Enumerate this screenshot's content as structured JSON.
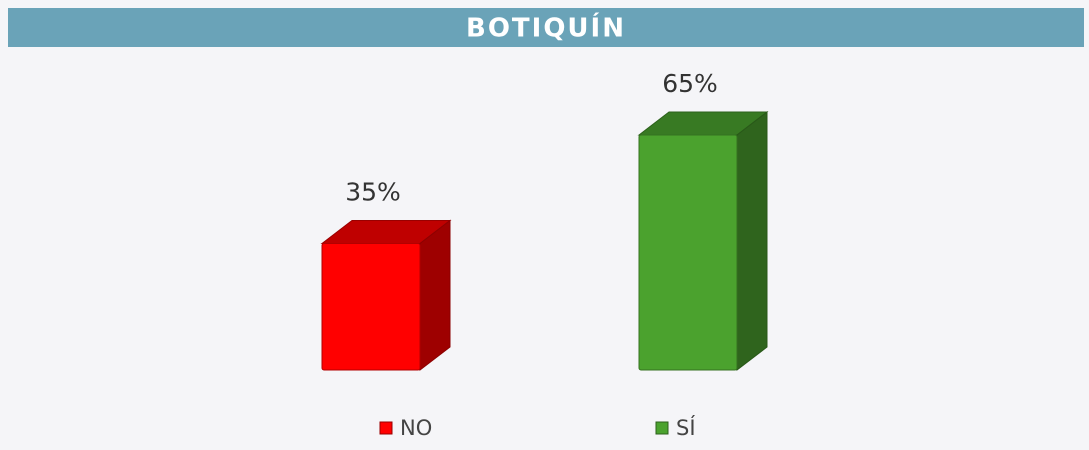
{
  "chart_data": {
    "type": "bar3d",
    "title": "BOTIQUÍN",
    "categories": [
      "NO",
      "SÍ"
    ],
    "values": [
      35,
      65
    ],
    "value_labels": [
      "35%",
      "65%"
    ],
    "colors": [
      "#ff0000",
      "#4ba22e"
    ],
    "legend": "bottom"
  }
}
